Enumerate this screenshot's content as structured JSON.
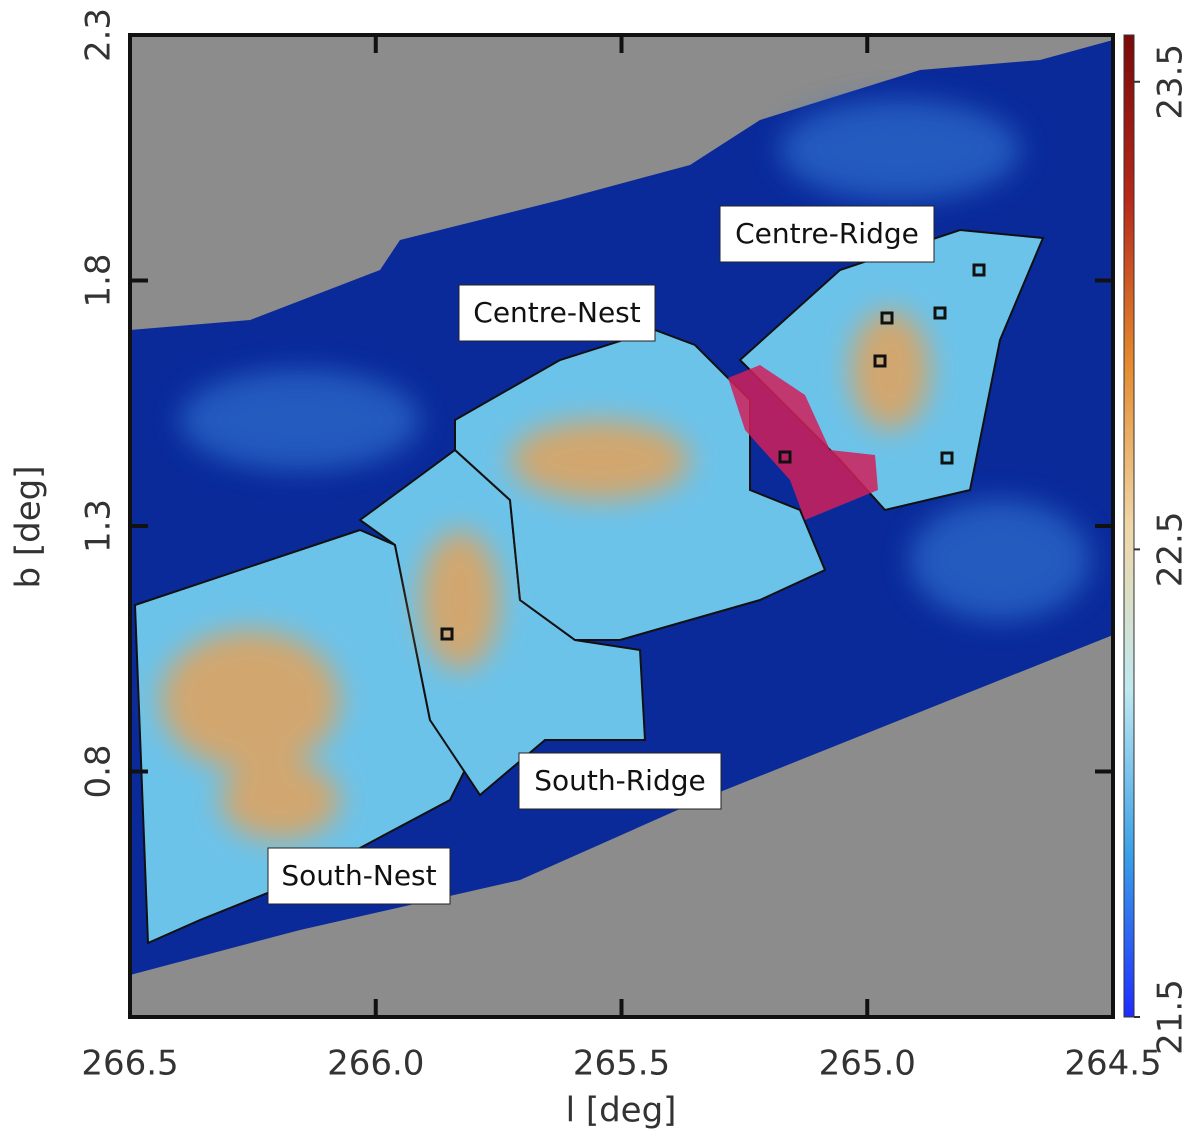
{
  "chart_data": {
    "type": "image",
    "xlabel": "l [deg]",
    "ylabel": "b [deg]",
    "xlim": [
      266.5,
      264.5
    ],
    "xticks": [
      {
        "value": 266.5,
        "label": "266.5"
      },
      {
        "value": 266,
        "label": "266.0"
      },
      {
        "value": 265.5,
        "label": "265.5"
      },
      {
        "value": 265,
        "label": "265.0"
      },
      {
        "value": 264.5,
        "label": "264.5"
      }
    ],
    "ylim": [
      0.3,
      2.3
    ],
    "yticks": [
      2.3,
      1.8,
      1.3,
      0.8
    ],
    "clim": [
      21.5,
      23.6
    ],
    "cticks": [
      21.5,
      22.5,
      23.5
    ],
    "colormap": [
      "#1f2cff",
      "#3aa0e8",
      "#bfe8f0",
      "#f0d7a8",
      "#e58a2e",
      "#b8281a",
      "#7a0a0a"
    ],
    "annotations": [
      "Centre-Ridge",
      "Centre-Nest",
      "South-Ridge",
      "South-Nest"
    ]
  }
}
